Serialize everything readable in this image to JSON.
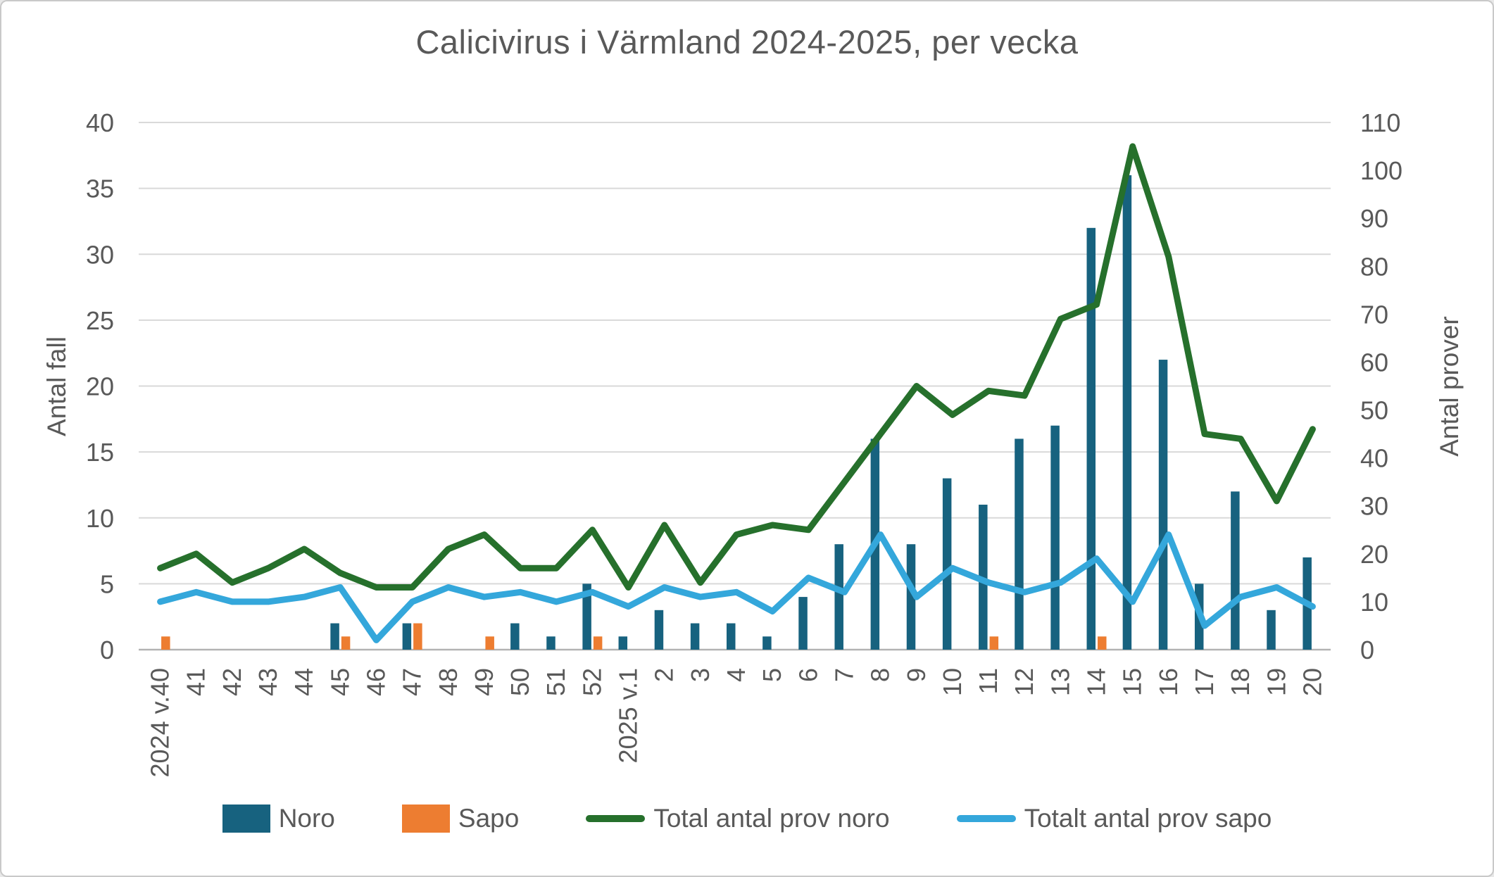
{
  "chart_data": {
    "type": "combo-bar-line",
    "title": "Calicivirus i Värmland 2024-2025, per vecka",
    "categories": [
      "2024 v.40",
      "41",
      "42",
      "43",
      "44",
      "45",
      "46",
      "47",
      "48",
      "49",
      "50",
      "51",
      "52",
      "2025 v.1",
      "2",
      "3",
      "4",
      "5",
      "6",
      "7",
      "8",
      "9",
      "10",
      "11",
      "12",
      "13",
      "14",
      "15",
      "16",
      "17",
      "18",
      "19",
      "20"
    ],
    "series": [
      {
        "name": "Noro",
        "type": "bar",
        "axis": "left",
        "color": "#17627F",
        "values": [
          0,
          0,
          0,
          0,
          0,
          2,
          0,
          2,
          0,
          0,
          2,
          1,
          5,
          1,
          3,
          2,
          2,
          1,
          4,
          8,
          16,
          8,
          13,
          11,
          16,
          17,
          32,
          36,
          22,
          5,
          12,
          3,
          7
        ]
      },
      {
        "name": "Sapo",
        "type": "bar",
        "axis": "left",
        "color": "#ED7D31",
        "values": [
          1,
          0,
          0,
          0,
          0,
          1,
          0,
          2,
          0,
          1,
          0,
          0,
          1,
          0,
          0,
          0,
          0,
          0,
          0,
          0,
          0,
          0,
          0,
          1,
          0,
          0,
          1,
          0,
          0,
          0,
          0,
          0,
          0
        ]
      },
      {
        "name": "Total antal prov noro",
        "type": "line",
        "axis": "right",
        "color": "#26702C",
        "values": [
          17,
          20,
          14,
          17,
          21,
          16,
          13,
          13,
          21,
          24,
          17,
          17,
          25,
          13,
          26,
          14,
          24,
          26,
          25,
          35,
          45,
          55,
          49,
          54,
          53,
          69,
          72,
          105,
          82,
          45,
          44,
          31,
          46
        ]
      },
      {
        "name": "Totalt antal prov sapo",
        "type": "line",
        "axis": "right",
        "color": "#34A7DB",
        "values": [
          10,
          12,
          10,
          10,
          11,
          13,
          2,
          10,
          13,
          11,
          12,
          10,
          12,
          9,
          13,
          11,
          12,
          8,
          15,
          12,
          24,
          11,
          17,
          14,
          12,
          14,
          19,
          10,
          24,
          5,
          11,
          13,
          9
        ]
      }
    ],
    "axes": {
      "left": {
        "label": "Antal fall",
        "min": 0,
        "max": 40,
        "step": 5
      },
      "right": {
        "label": "Antal prover",
        "min": 0,
        "max": 110,
        "step": 10
      }
    },
    "grid": true,
    "legend_position": "bottom",
    "colors": {
      "gridline": "#D9D9D9",
      "axis_line": "#B3B3B3",
      "text": "#595959"
    }
  }
}
